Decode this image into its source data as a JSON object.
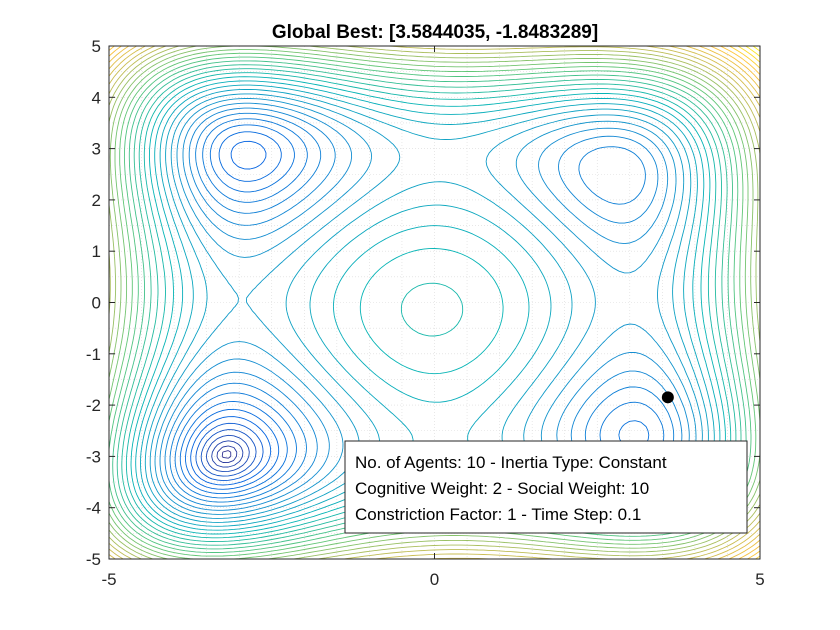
{
  "chart_data": {
    "type": "contour",
    "title": "Global Best: [3.5844035, -1.8483289]",
    "xlabel": "",
    "ylabel": "",
    "xlim": [
      -5,
      5
    ],
    "ylim": [
      -5,
      5
    ],
    "x_ticks": [
      "-5",
      "0",
      "5"
    ],
    "y_ticks": [
      "5",
      "4",
      "3",
      "2",
      "1",
      "0",
      "-1",
      "-2",
      "-3",
      "-4",
      "-5"
    ],
    "grid": "on",
    "colormap": "parula",
    "contour_levels": 40,
    "global_best": {
      "x": 3.5844035,
      "y": -1.8483289
    },
    "marker_color": "#000000",
    "legend_position": "bottom-right",
    "legend_lines": [
      "No. of Agents: 10 - Inertia Type: Constant",
      "Cognitive Weight: 2 - Social Weight: 10",
      "Constriction Factor: 1 - Time Step: 0.1"
    ]
  }
}
